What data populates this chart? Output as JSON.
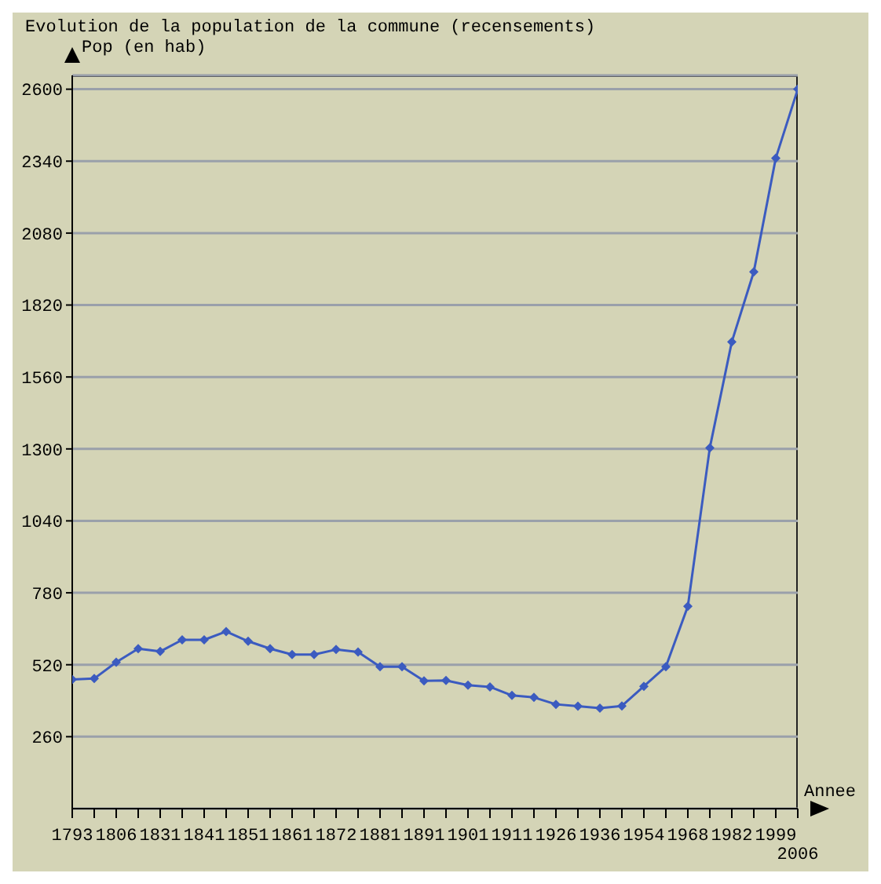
{
  "chart_data": {
    "type": "line",
    "title": "Evolution de la population de la commune (recensements)",
    "ylabel": "Pop (en hab)",
    "xlabel": "Annee",
    "categories": [
      "1793",
      null,
      "1806",
      null,
      "1831",
      null,
      "1841",
      null,
      "1851",
      null,
      "1861",
      null,
      "1872",
      null,
      "1881",
      null,
      "1891",
      null,
      "1901",
      null,
      "1911",
      null,
      "1926",
      null,
      "1936",
      null,
      "1954",
      null,
      "1968",
      null,
      "1982",
      null,
      "1999",
      "2006"
    ],
    "series": [
      {
        "color": "#3b5bc0",
        "values": [
          467,
          470,
          529,
          578,
          568,
          610,
          610,
          640,
          605,
          578,
          557,
          557,
          575,
          566,
          513,
          513,
          462,
          463,
          446,
          440,
          409,
          402,
          377,
          370,
          363,
          371,
          442,
          513,
          731,
          1304,
          1687,
          1940,
          2351,
          2600
        ]
      }
    ],
    "ylim": [
      0,
      2650
    ],
    "yticks": [
      260,
      520,
      780,
      1040,
      1300,
      1560,
      1820,
      2080,
      2340,
      2600
    ],
    "grid": "y",
    "marker": "diamond",
    "line_style": "solid"
  }
}
